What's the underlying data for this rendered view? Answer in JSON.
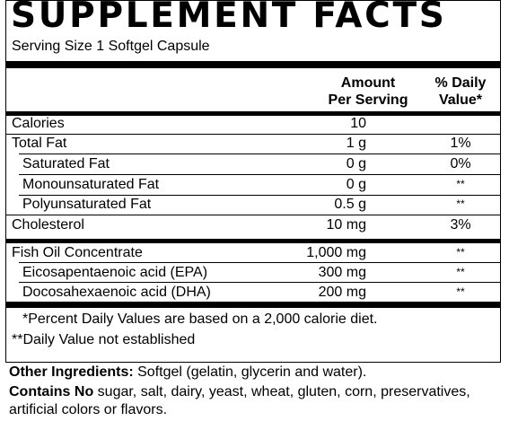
{
  "title": "SUPPLEMENT FACTS",
  "serving": "Serving Size 1 Softgel Capsule",
  "header": {
    "amount_line1": "Amount",
    "amount_line2": "Per Serving",
    "dv_line1": "% Daily",
    "dv_line2": "Value*"
  },
  "rows": [
    {
      "name": "Calories",
      "amount": "10",
      "dv": ""
    },
    {
      "name": "Total Fat",
      "amount": "1 g",
      "dv": "1%"
    },
    {
      "name": "Saturated Fat",
      "amount": "0 g",
      "dv": "0%"
    },
    {
      "name": "Monounsaturated Fat",
      "amount": "0 g",
      "dv": "**"
    },
    {
      "name": "Polyunsaturated Fat",
      "amount": "0.5 g",
      "dv": "**"
    },
    {
      "name": "Cholesterol",
      "amount": "10 mg",
      "dv": "3%"
    },
    {
      "name": "Fish Oil Concentrate",
      "amount": "1,000 mg",
      "dv": "**"
    },
    {
      "name": "Eicosapentaenoic acid (EPA)",
      "amount": "300 mg",
      "dv": "**"
    },
    {
      "name": "Docosahexaenoic acid (DHA)",
      "amount": "200 mg",
      "dv": "**"
    }
  ],
  "footnotes": [
    "*Percent Daily Values are based on a 2,000 calorie diet.",
    "**Daily Value not established"
  ],
  "other_ingredients": {
    "label": "Other Ingredients:",
    "text": " Softgel (gelatin, glycerin and water)."
  },
  "contains_no": {
    "label": "Contains No",
    "text": " sugar, salt, dairy, yeast, wheat, gluten, corn, preservatives, artificial colors or flavors."
  }
}
